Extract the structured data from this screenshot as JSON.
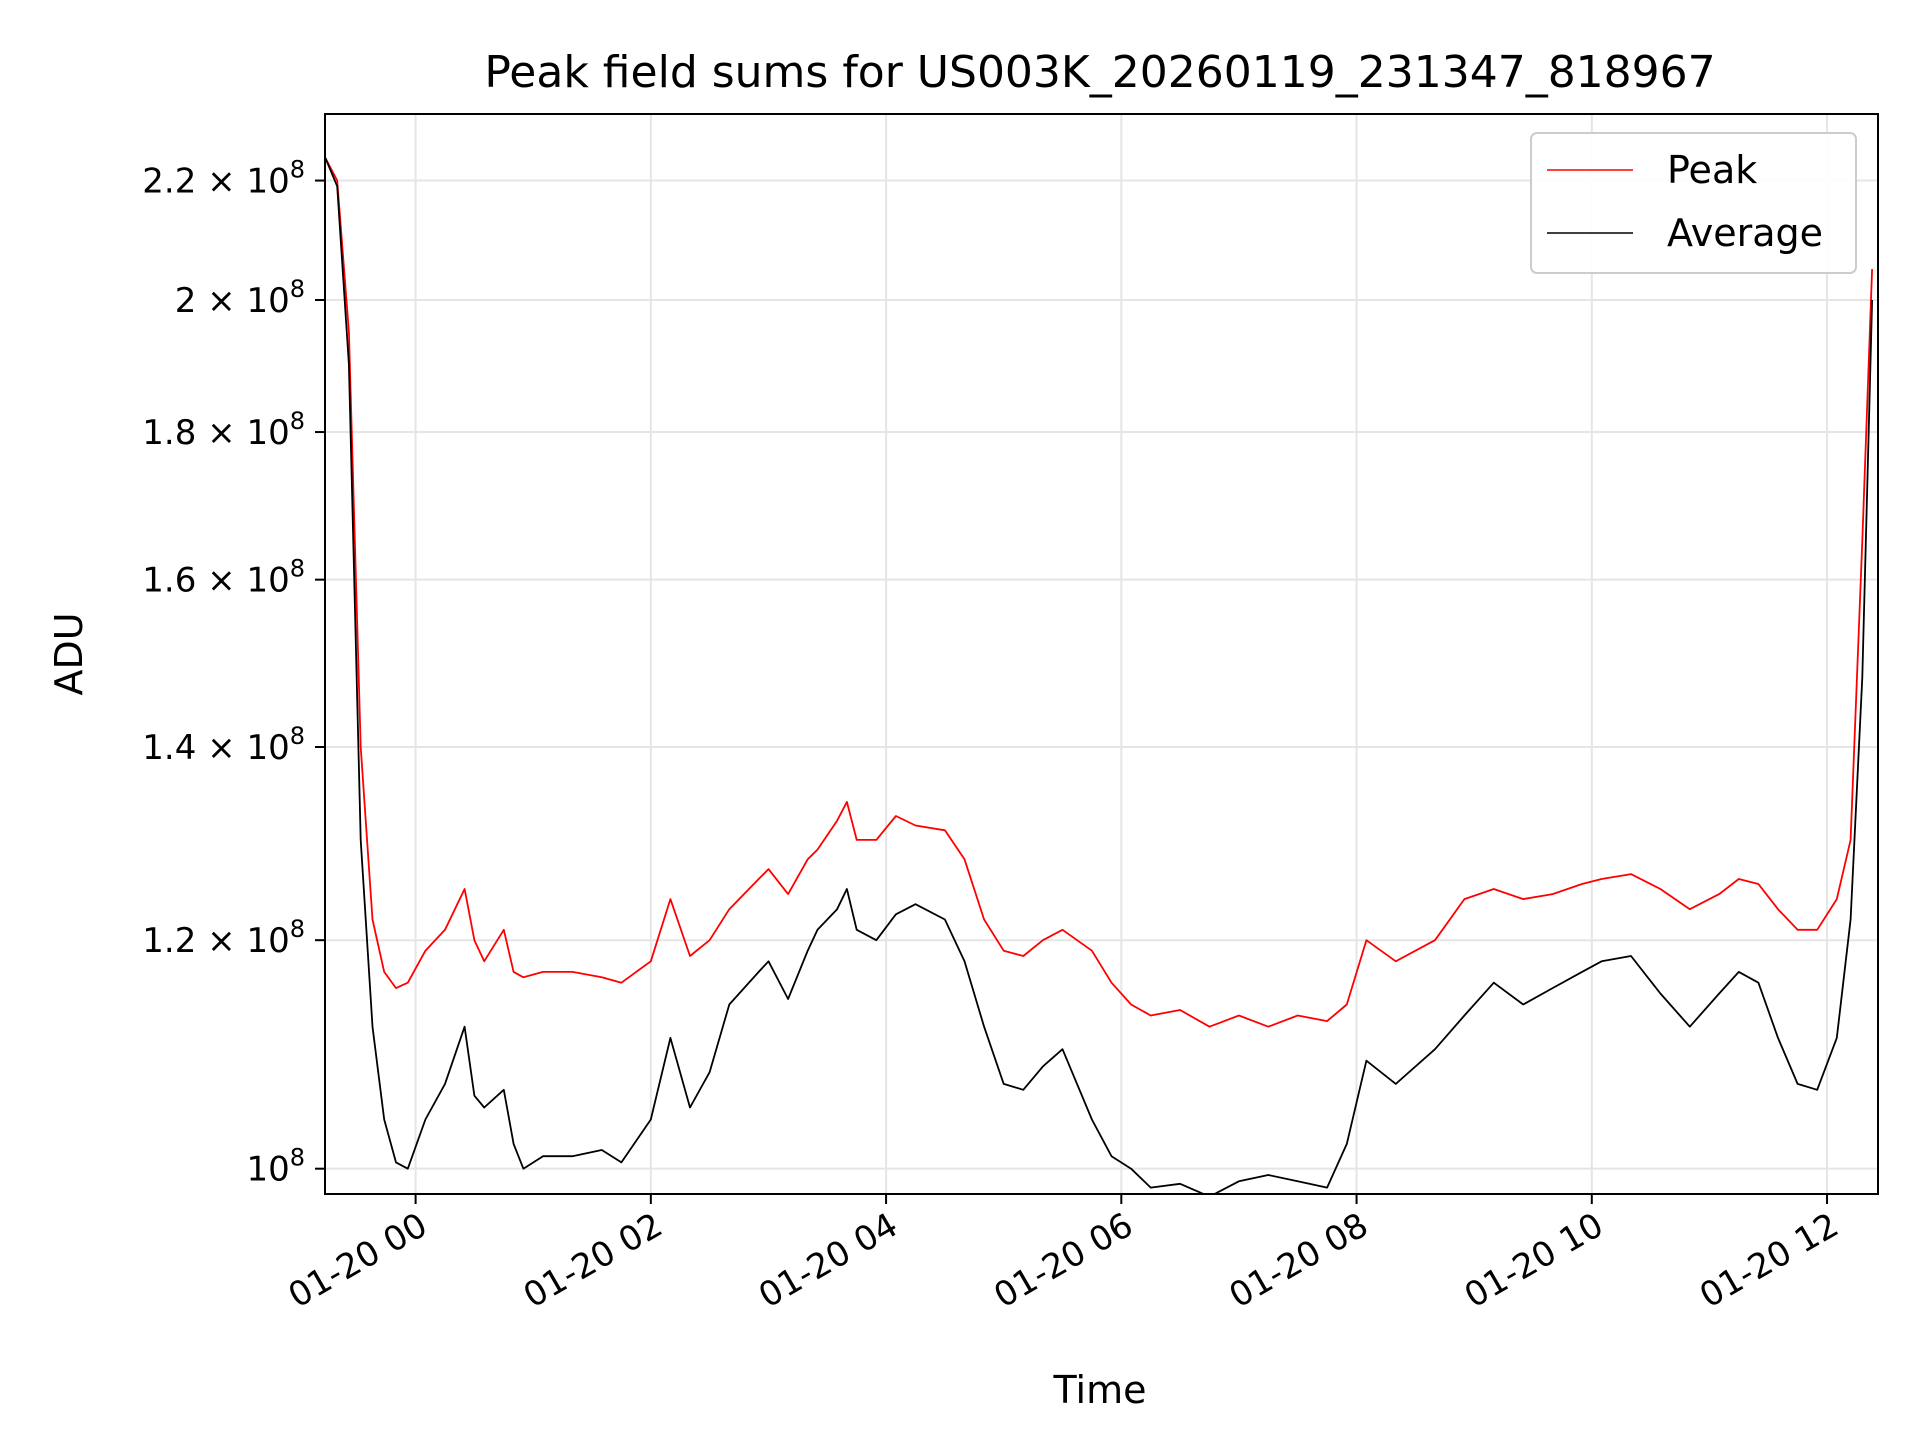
{
  "chart_data": {
    "type": "line",
    "title": "Peak field sums for US003K_20260119_231347_818967",
    "xlabel": "Time",
    "ylabel": "ADU",
    "yscale": "log",
    "xlim": [
      "01-19 23:13:47",
      "01-20 12:26"
    ],
    "ylim": [
      98000000,
      232000000
    ],
    "x_ticks": [
      {
        "value": "01-20 00:00",
        "label": "01-20 00"
      },
      {
        "value": "01-20 02:00",
        "label": "01-20 02"
      },
      {
        "value": "01-20 04:00",
        "label": "01-20 04"
      },
      {
        "value": "01-20 06:00",
        "label": "01-20 06"
      },
      {
        "value": "01-20 08:00",
        "label": "01-20 08"
      },
      {
        "value": "01-20 10:00",
        "label": "01-20 10"
      },
      {
        "value": "01-20 12:00",
        "label": "01-20 12"
      }
    ],
    "y_ticks": [
      {
        "value": 100000000,
        "mantissa": "",
        "exponent": "8"
      },
      {
        "value": 120000000,
        "mantissa": "1.2",
        "exponent": "8"
      },
      {
        "value": 140000000,
        "mantissa": "1.4",
        "exponent": "8"
      },
      {
        "value": 160000000,
        "mantissa": "1.6",
        "exponent": "8"
      },
      {
        "value": 180000000,
        "mantissa": "1.8",
        "exponent": "8"
      },
      {
        "value": 200000000,
        "mantissa": "2",
        "exponent": "8"
      },
      {
        "value": 220000000,
        "mantissa": "2.2",
        "exponent": "8"
      }
    ],
    "grid": true,
    "legend_position": "top-right",
    "series": [
      {
        "name": "Peak",
        "color": "#ff0000",
        "x": [
          "01-19 23:14",
          "01-19 23:20",
          "01-19 23:26",
          "01-19 23:32",
          "01-19 23:38",
          "01-19 23:44",
          "01-19 23:50",
          "01-19 23:56",
          "01-20 00:05",
          "01-20 00:15",
          "01-20 00:25",
          "01-20 00:30",
          "01-20 00:35",
          "01-20 00:45",
          "01-20 00:50",
          "01-20 00:55",
          "01-20 01:05",
          "01-20 01:20",
          "01-20 01:35",
          "01-20 01:45",
          "01-20 02:00",
          "01-20 02:10",
          "01-20 02:20",
          "01-20 02:30",
          "01-20 02:40",
          "01-20 02:55",
          "01-20 03:00",
          "01-20 03:10",
          "01-20 03:20",
          "01-20 03:25",
          "01-20 03:35",
          "01-20 03:40",
          "01-20 03:45",
          "01-20 03:55",
          "01-20 04:05",
          "01-20 04:15",
          "01-20 04:30",
          "01-20 04:40",
          "01-20 04:50",
          "01-20 05:00",
          "01-20 05:10",
          "01-20 05:20",
          "01-20 05:30",
          "01-20 05:45",
          "01-20 05:55",
          "01-20 06:05",
          "01-20 06:15",
          "01-20 06:30",
          "01-20 06:45",
          "01-20 07:00",
          "01-20 07:15",
          "01-20 07:30",
          "01-20 07:45",
          "01-20 07:55",
          "01-20 08:05",
          "01-20 08:20",
          "01-20 08:40",
          "01-20 08:55",
          "01-20 09:10",
          "01-20 09:25",
          "01-20 09:40",
          "01-20 09:55",
          "01-20 10:05",
          "01-20 10:20",
          "01-20 10:35",
          "01-20 10:50",
          "01-20 11:05",
          "01-20 11:15",
          "01-20 11:25",
          "01-20 11:35",
          "01-20 11:45",
          "01-20 11:55",
          "01-20 12:05",
          "01-20 12:12",
          "01-20 12:18",
          "01-20 12:23"
        ],
        "values": [
          224000000,
          220000000,
          195000000,
          140000000,
          122000000,
          117000000,
          115500000,
          116000000,
          119000000,
          121000000,
          125000000,
          120000000,
          118000000,
          121000000,
          117000000,
          116500000,
          117000000,
          117000000,
          116500000,
          116000000,
          118000000,
          124000000,
          118500000,
          120000000,
          123000000,
          126000000,
          127000000,
          124500000,
          128000000,
          129000000,
          132000000,
          134000000,
          130000000,
          130000000,
          132500000,
          131500000,
          131000000,
          128000000,
          122000000,
          119000000,
          118500000,
          120000000,
          121000000,
          119000000,
          116000000,
          114000000,
          113000000,
          113500000,
          112000000,
          113000000,
          112000000,
          113000000,
          112500000,
          114000000,
          120000000,
          118000000,
          120000000,
          124000000,
          125000000,
          124000000,
          124500000,
          125500000,
          126000000,
          126500000,
          125000000,
          123000000,
          124500000,
          126000000,
          125500000,
          123000000,
          121000000,
          121000000,
          124000000,
          130000000,
          165000000,
          205000000
        ]
      },
      {
        "name": "Average",
        "color": "#000000",
        "x": [
          "01-19 23:14",
          "01-19 23:20",
          "01-19 23:26",
          "01-19 23:32",
          "01-19 23:38",
          "01-19 23:44",
          "01-19 23:50",
          "01-19 23:56",
          "01-20 00:05",
          "01-20 00:15",
          "01-20 00:25",
          "01-20 00:30",
          "01-20 00:35",
          "01-20 00:45",
          "01-20 00:50",
          "01-20 00:55",
          "01-20 01:05",
          "01-20 01:20",
          "01-20 01:35",
          "01-20 01:45",
          "01-20 02:00",
          "01-20 02:10",
          "01-20 02:20",
          "01-20 02:30",
          "01-20 02:40",
          "01-20 02:55",
          "01-20 03:00",
          "01-20 03:10",
          "01-20 03:20",
          "01-20 03:25",
          "01-20 03:35",
          "01-20 03:40",
          "01-20 03:45",
          "01-20 03:55",
          "01-20 04:05",
          "01-20 04:15",
          "01-20 04:30",
          "01-20 04:40",
          "01-20 04:50",
          "01-20 05:00",
          "01-20 05:10",
          "01-20 05:20",
          "01-20 05:30",
          "01-20 05:45",
          "01-20 05:55",
          "01-20 06:05",
          "01-20 06:15",
          "01-20 06:30",
          "01-20 06:45",
          "01-20 07:00",
          "01-20 07:15",
          "01-20 07:30",
          "01-20 07:45",
          "01-20 07:55",
          "01-20 08:05",
          "01-20 08:20",
          "01-20 08:40",
          "01-20 08:55",
          "01-20 09:10",
          "01-20 09:25",
          "01-20 09:40",
          "01-20 09:55",
          "01-20 10:05",
          "01-20 10:20",
          "01-20 10:35",
          "01-20 10:50",
          "01-20 11:05",
          "01-20 11:15",
          "01-20 11:25",
          "01-20 11:35",
          "01-20 11:45",
          "01-20 11:55",
          "01-20 12:05",
          "01-20 12:12",
          "01-20 12:18",
          "01-20 12:23"
        ],
        "values": [
          224000000,
          219000000,
          190000000,
          130000000,
          112000000,
          104000000,
          100500000,
          100000000,
          104000000,
          107000000,
          112000000,
          106000000,
          105000000,
          106500000,
          102000000,
          100000000,
          101000000,
          101000000,
          101500000,
          100500000,
          104000000,
          111000000,
          105000000,
          108000000,
          114000000,
          117000000,
          118000000,
          114500000,
          119000000,
          121000000,
          123000000,
          125000000,
          121000000,
          120000000,
          122500000,
          123500000,
          122000000,
          118000000,
          112000000,
          107000000,
          106500000,
          108500000,
          110000000,
          104000000,
          101000000,
          100000000,
          98500000,
          98800000,
          97800000,
          99000000,
          99500000,
          99000000,
          98500000,
          102000000,
          109000000,
          107000000,
          110000000,
          113000000,
          116000000,
          114000000,
          115500000,
          117000000,
          118000000,
          118500000,
          115000000,
          112000000,
          115000000,
          117000000,
          116000000,
          111000000,
          107000000,
          106500000,
          111000000,
          122000000,
          148000000,
          200000000
        ]
      }
    ]
  }
}
